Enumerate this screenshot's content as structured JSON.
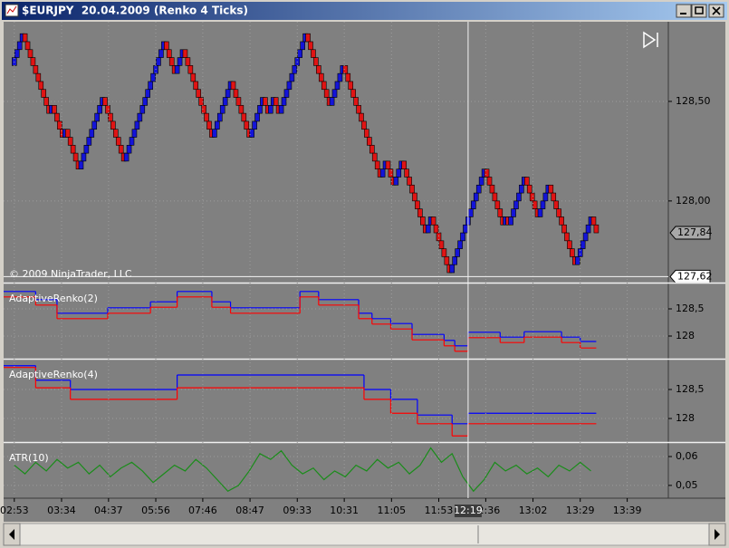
{
  "window": {
    "title": "$EURJPY  20.04.2009 (Renko 4 Ticks)"
  },
  "chart_data": [
    {
      "type": "renko",
      "watermark": "© 2009 NinjaTrader, LLC",
      "up_color": "#1414d8",
      "down_color": "#e01414",
      "grid": true,
      "xlim": [
        -4,
        245
      ],
      "ylim": [
        127.59,
        128.9
      ],
      "yticks": [
        {
          "value": 128.0,
          "label": "128,00"
        },
        {
          "value": 128.5,
          "label": "128,50"
        }
      ],
      "last_price": {
        "value": 127.84,
        "label": "127,84"
      },
      "cursor_price": {
        "value": 127.62,
        "label": "127,62"
      },
      "values": [
        128.68,
        128.72,
        128.76,
        128.8,
        128.84,
        128.8,
        128.76,
        128.72,
        128.68,
        128.64,
        128.6,
        128.56,
        128.52,
        128.48,
        128.44,
        128.48,
        128.44,
        128.4,
        128.36,
        128.32,
        128.36,
        128.32,
        128.28,
        128.24,
        128.2,
        128.16,
        128.2,
        128.24,
        128.28,
        128.32,
        128.36,
        128.4,
        128.44,
        128.48,
        128.52,
        128.48,
        128.44,
        128.4,
        128.36,
        128.32,
        128.28,
        128.24,
        128.2,
        128.24,
        128.28,
        128.32,
        128.36,
        128.4,
        128.44,
        128.48,
        128.52,
        128.56,
        128.6,
        128.64,
        128.68,
        128.72,
        128.76,
        128.8,
        128.76,
        128.72,
        128.68,
        128.64,
        128.68,
        128.72,
        128.76,
        128.72,
        128.68,
        128.64,
        128.6,
        128.56,
        128.52,
        128.48,
        128.44,
        128.4,
        128.36,
        128.32,
        128.36,
        128.4,
        128.44,
        128.48,
        128.52,
        128.56,
        128.6,
        128.56,
        128.52,
        128.48,
        128.44,
        128.4,
        128.36,
        128.32,
        128.36,
        128.4,
        128.44,
        128.48,
        128.52,
        128.48,
        128.44,
        128.48,
        128.52,
        128.48,
        128.44,
        128.48,
        128.52,
        128.56,
        128.6,
        128.64,
        128.68,
        128.72,
        128.76,
        128.8,
        128.84,
        128.8,
        128.76,
        128.72,
        128.68,
        128.64,
        128.6,
        128.56,
        128.52,
        128.48,
        128.52,
        128.56,
        128.6,
        128.64,
        128.68,
        128.64,
        128.6,
        128.56,
        128.52,
        128.48,
        128.44,
        128.4,
        128.36,
        128.32,
        128.28,
        128.24,
        128.2,
        128.16,
        128.12,
        128.16,
        128.2,
        128.16,
        128.12,
        128.08,
        128.12,
        128.16,
        128.2,
        128.16,
        128.12,
        128.08,
        128.04,
        128.0,
        127.96,
        127.92,
        127.88,
        127.84,
        127.88,
        127.92,
        127.88,
        127.84,
        127.8,
        127.76,
        127.72,
        127.68,
        127.64,
        127.68,
        127.72,
        127.76,
        127.8,
        127.84,
        127.88,
        127.92,
        127.96,
        128.0,
        128.04,
        128.08,
        128.12,
        128.16,
        128.12,
        128.08,
        128.04,
        128.0,
        127.96,
        127.92,
        127.88,
        127.92,
        127.88,
        127.92,
        127.96,
        128.0,
        128.04,
        128.08,
        128.12,
        128.08,
        128.04,
        128.0,
        127.96,
        127.92,
        127.96,
        128.0,
        128.04,
        128.08,
        128.04,
        128.0,
        127.96,
        127.92,
        127.88,
        127.84,
        127.8,
        127.76,
        127.72,
        127.68,
        127.72,
        127.76,
        127.8,
        127.84,
        127.88,
        127.92,
        127.88,
        127.84
      ]
    },
    {
      "type": "line",
      "title": "AdaptiveRenko(2)",
      "step": true,
      "grid": true,
      "xlim": [
        -4,
        245
      ],
      "ylim": [
        127.6,
        128.95
      ],
      "yticks": [
        {
          "value": 128,
          "label": "128"
        },
        {
          "value": 128.5,
          "label": "128,5"
        }
      ],
      "x": [
        -4,
        8,
        16,
        35,
        51,
        61,
        74,
        81,
        107,
        114,
        129,
        134,
        141,
        149,
        161,
        165,
        170,
        182,
        191,
        205,
        212,
        218
      ],
      "series": [
        {
          "color": "#0000ff",
          "values": [
            128.82,
            128.67,
            128.42,
            128.52,
            128.63,
            128.82,
            128.63,
            128.52,
            128.82,
            128.67,
            128.42,
            128.32,
            128.23,
            128.03,
            127.92,
            127.82,
            128.07,
            127.98,
            128.08,
            127.98,
            127.9,
            127.9
          ]
        },
        {
          "color": "#ff0000",
          "values": [
            128.72,
            128.57,
            128.32,
            128.42,
            128.53,
            128.72,
            128.53,
            128.42,
            128.72,
            128.57,
            128.32,
            128.22,
            128.13,
            127.93,
            127.82,
            127.72,
            127.97,
            127.88,
            127.98,
            127.88,
            127.78,
            127.78
          ]
        }
      ]
    },
    {
      "type": "line",
      "title": "AdaptiveRenko(4)",
      "step": true,
      "grid": true,
      "xlim": [
        -4,
        245
      ],
      "ylim": [
        127.61,
        129.0
      ],
      "yticks": [
        {
          "value": 128,
          "label": "128"
        },
        {
          "value": 128.5,
          "label": "128,5"
        }
      ],
      "x": [
        -4,
        8,
        21,
        61,
        131,
        141,
        151,
        164,
        170,
        218
      ],
      "series": [
        {
          "color": "#0000ff",
          "values": [
            128.91,
            128.66,
            128.5,
            128.75,
            128.5,
            128.33,
            128.06,
            127.91,
            128.09,
            128.09
          ]
        },
        {
          "color": "#ff0000",
          "values": [
            128.88,
            128.53,
            128.33,
            128.53,
            128.33,
            128.09,
            127.91,
            127.7,
            127.91,
            127.91
          ]
        }
      ]
    },
    {
      "type": "line",
      "title": "ATR(10)",
      "step": false,
      "grid": true,
      "xlim": [
        -4,
        245
      ],
      "ylim": [
        0.0462,
        0.0644
      ],
      "yticks": [
        {
          "value": 0.05,
          "label": "0,05"
        },
        {
          "value": 0.06,
          "label": "0,06"
        }
      ],
      "xticks": [
        {
          "value": 0,
          "label": "02:53"
        },
        {
          "value": 17.7,
          "label": "03:34"
        },
        {
          "value": 35.3,
          "label": "04:37"
        },
        {
          "value": 53,
          "label": "05:56"
        },
        {
          "value": 70.6,
          "label": "07:46"
        },
        {
          "value": 88.3,
          "label": "08:47"
        },
        {
          "value": 106,
          "label": "09:33"
        },
        {
          "value": 123.6,
          "label": "10:31"
        },
        {
          "value": 141.3,
          "label": "11:05"
        },
        {
          "value": 159,
          "label": "11:53"
        },
        {
          "value": 176.6,
          "label": "12:36"
        },
        {
          "value": 194.3,
          "label": "13:02"
        },
        {
          "value": 212,
          "label": "13:29"
        },
        {
          "value": 229.6,
          "label": "13:39"
        }
      ],
      "cursor_time": {
        "value": 170,
        "label": "12:19"
      },
      "x": [
        0,
        4,
        8,
        12,
        16,
        20,
        24,
        28,
        32,
        36,
        40,
        44,
        48,
        52,
        56,
        60,
        64,
        68,
        72,
        76,
        80,
        84,
        88,
        92,
        96,
        100,
        104,
        108,
        112,
        116,
        120,
        124,
        128,
        132,
        136,
        140,
        144,
        148,
        152,
        156,
        160,
        164,
        168,
        172,
        176,
        180,
        184,
        188,
        192,
        196,
        200,
        204,
        208,
        212,
        216
      ],
      "series": [
        {
          "color": "#1a8c1a",
          "values": [
            0.057,
            0.054,
            0.058,
            0.055,
            0.059,
            0.056,
            0.058,
            0.054,
            0.057,
            0.053,
            0.056,
            0.058,
            0.055,
            0.051,
            0.054,
            0.057,
            0.055,
            0.059,
            0.056,
            0.052,
            0.048,
            0.05,
            0.055,
            0.061,
            0.059,
            0.062,
            0.057,
            0.054,
            0.056,
            0.052,
            0.055,
            0.053,
            0.057,
            0.055,
            0.059,
            0.056,
            0.058,
            0.054,
            0.057,
            0.063,
            0.058,
            0.061,
            0.053,
            0.048,
            0.052,
            0.058,
            0.055,
            0.057,
            0.054,
            0.056,
            0.053,
            0.057,
            0.055,
            0.058,
            0.055
          ]
        }
      ]
    }
  ]
}
